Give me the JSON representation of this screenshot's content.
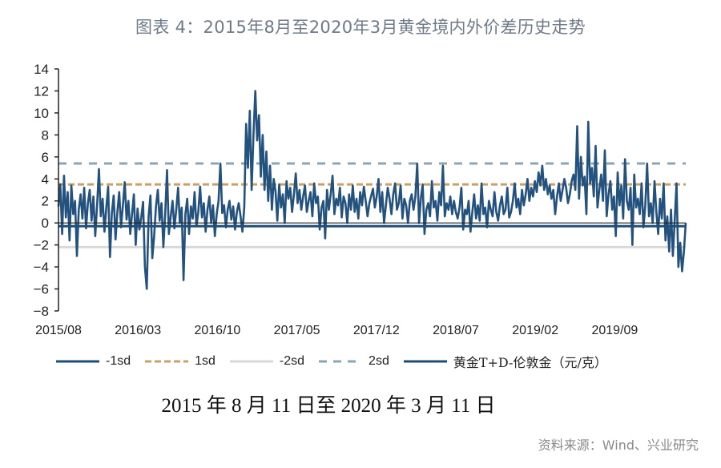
{
  "title": "图表 4：2015年8月至2020年3月黄金境内外价差历史走势",
  "subtitle": "2015 年 8 月 11 日至 2020 年 3 月 11 日",
  "source": "资料来源：Wind、兴业研究",
  "legend": [
    {
      "label": "-1sd",
      "style": "solid",
      "color": "#1f4e79"
    },
    {
      "label": "1sd",
      "style": "dashed",
      "color": "#c9a06a"
    },
    {
      "label": "-2sd",
      "style": "solid",
      "color": "#d9d9d9"
    },
    {
      "label": "2sd",
      "style": "dashed",
      "color": "#8aa4b8"
    },
    {
      "label": "黄金T+D-伦敦金（元/克）",
      "style": "solid",
      "color": "#1f4e79"
    }
  ],
  "colors": {
    "series": "#24527f",
    "axis": "#222222",
    "minus1sd": "#1f4e79",
    "plus1sd": "#c9a06a",
    "minus2sd": "#d9d9d9",
    "plus2sd": "#8aa4b8"
  },
  "chart_data": {
    "type": "line",
    "title": "图表 4：2015年8月至2020年3月黄金境内外价差历史走势",
    "subtitle": "2015 年 8 月 11 日至 2020 年 3 月 11 日",
    "xlabel": "",
    "ylabel": "",
    "ylim": [
      -8,
      14
    ],
    "yticks": [
      14,
      12,
      10,
      8,
      6,
      4,
      2,
      0,
      -2,
      -4,
      -6,
      -8
    ],
    "xticks": [
      "2015/08",
      "2016/03",
      "2016/10",
      "2017/05",
      "2017/12",
      "2018/07",
      "2019/02",
      "2019/09"
    ],
    "grid": false,
    "legend_position": "bottom",
    "reference_lines": {
      "-1sd": -0.3,
      "1sd": 3.5,
      "-2sd": -2.2,
      "2sd": 5.4
    },
    "series": [
      {
        "name": "黄金T+D-伦敦金（元/克）",
        "x_start": "2015/08",
        "x_end": "2020/03",
        "values": [
          1.5,
          3.5,
          -1.0,
          4.3,
          0.5,
          2.8,
          -1.6,
          3.4,
          0.8,
          2.0,
          -3.0,
          1.2,
          2.6,
          0.4,
          3.2,
          -0.5,
          1.8,
          3.0,
          0.2,
          2.4,
          -1.2,
          1.6,
          4.9,
          0.6,
          2.2,
          -0.8,
          1.4,
          3.3,
          -3.1,
          0.9,
          2.5,
          -1.5,
          1.0,
          2.8,
          -0.4,
          1.6,
          3.7,
          0.3,
          2.0,
          -1.0,
          0.8,
          2.6,
          -2.0,
          1.3,
          -0.6,
          0.5,
          1.9,
          -4.0,
          -6.0,
          0.6,
          2.5,
          -3.2,
          -1.2,
          1.5,
          3.0,
          0.2,
          1.8,
          -2.2,
          0.8,
          4.8,
          -1.0,
          0.6,
          2.0,
          -0.5,
          1.2,
          3.2,
          0.0,
          1.4,
          -5.2,
          0.8,
          2.2,
          -1.0,
          1.5,
          0.4,
          2.8,
          -0.3,
          1.0,
          3.3,
          0.5,
          1.8,
          -0.8,
          1.2,
          2.4,
          0.0,
          1.6,
          -1.2,
          0.8,
          2.0,
          5.4,
          0.9,
          1.6,
          -0.4,
          1.2,
          2.0,
          0.3,
          1.5,
          -0.6,
          1.0,
          1.8,
          0.6,
          -0.8,
          1.4,
          9.0,
          5.0,
          10.2,
          3.0,
          8.0,
          12.0,
          7.5,
          9.8,
          4.2,
          8.0,
          3.0,
          6.5,
          2.0,
          5.2,
          1.2,
          4.0,
          2.8,
          0.2,
          3.5,
          1.4,
          2.6,
          0.0,
          3.8,
          2.2,
          3.2,
          1.0,
          2.6,
          4.5,
          1.8,
          3.0,
          1.2,
          2.4,
          3.4,
          1.0,
          2.0,
          2.8,
          0.6,
          3.6,
          1.8,
          2.4,
          -0.6,
          1.4,
          2.0,
          -1.4,
          3.0,
          1.2,
          2.6,
          4.3,
          0.8,
          2.2,
          1.6,
          3.2,
          0.5,
          2.4,
          1.8,
          0.0,
          2.6,
          1.2,
          3.4,
          1.0,
          2.2,
          0.4,
          2.8,
          1.6,
          3.3,
          2.0,
          0.6,
          1.8,
          2.5,
          3.1,
          1.4,
          2.4,
          4.0,
          1.0,
          2.8,
          0.0,
          1.6,
          3.2,
          2.2,
          0.8,
          2.6,
          3.6,
          1.2,
          1.8,
          3.4,
          0.4,
          2.2,
          1.6,
          0.0,
          2.0,
          2.6,
          1.2,
          2.4,
          5.4,
          0.0,
          2.2,
          3.5,
          -1.0,
          1.2,
          1.8,
          0.6,
          3.8,
          1.4,
          2.0,
          0.2,
          2.8,
          1.6,
          5.2,
          0.6,
          1.8,
          1.2,
          2.4,
          0.8,
          2.0,
          1.0,
          0.4,
          1.4,
          3.2,
          -0.6,
          1.2,
          0.8,
          2.0,
          -0.8,
          1.0,
          2.6,
          0.4,
          1.6,
          0.2,
          3.6,
          0.8,
          1.4,
          -0.4,
          2.0,
          1.2,
          0.6,
          2.8,
          1.0,
          0.2,
          1.6,
          2.4,
          0.8,
          1.2,
          3.2,
          0.5,
          1.0,
          2.0,
          3.6,
          1.4,
          2.2,
          0.8,
          3.0,
          1.6,
          2.6,
          4.0,
          2.0,
          3.2,
          2.4,
          3.8,
          2.8,
          4.6,
          3.4,
          5.2,
          3.0,
          4.0,
          2.6,
          3.4,
          2.2,
          3.0,
          0.8,
          2.4,
          3.6,
          2.0,
          3.0,
          4.0,
          3.2,
          1.8,
          2.6,
          3.8,
          4.4,
          3.0,
          8.8,
          2.2,
          6.0,
          3.4,
          4.2,
          0.8,
          9.2,
          3.6,
          5.0,
          2.4,
          7.0,
          1.4,
          3.0,
          4.4,
          2.0,
          6.6,
          0.6,
          2.6,
          3.8,
          1.2,
          2.4,
          -1.2,
          4.6,
          1.6,
          3.4,
          0.4,
          5.8,
          2.0,
          1.2,
          3.2,
          -2.0,
          4.4,
          1.4,
          2.2,
          0.8,
          3.6,
          -0.4,
          1.6,
          5.4,
          0.6,
          1.8,
          0.0,
          3.8,
          1.0,
          -1.0,
          2.2,
          0.4,
          3.6,
          -1.6,
          0.6,
          -2.6,
          1.2,
          -3.0,
          0.2,
          3.6,
          -4.0,
          -1.8,
          -4.4,
          -2.6,
          0.0
        ]
      }
    ]
  }
}
